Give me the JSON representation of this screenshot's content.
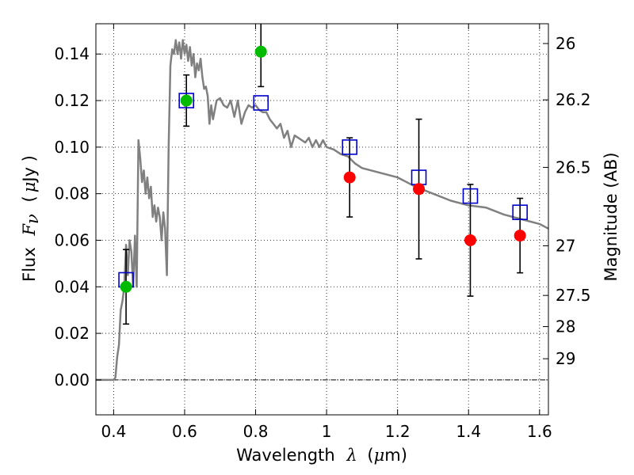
{
  "chart_data": {
    "type": "scatter",
    "xlabel": {
      "prefix": "Wavelength",
      "symbol": "λ",
      "unit_open": "(",
      "unit_mu": "μ",
      "unit_rest": "m)"
    },
    "ylabel": {
      "prefix": "Flux",
      "symbol": "F",
      "subscript": "ν",
      "unit_open": "(",
      "unit_mu": "μ",
      "unit_rest": "Jy )"
    },
    "y2label": "Magnitude (AB)",
    "xlim": [
      0.35,
      1.625
    ],
    "ylim": [
      -0.015,
      0.153
    ],
    "grid": true,
    "colors": {
      "model": "#808080",
      "template": "#0000cc",
      "detections": "#00bb00",
      "nondetections": "#ff0000",
      "errorbars": "#000000"
    },
    "x_ticks": [
      {
        "value": 0.4,
        "label": "0.4"
      },
      {
        "value": 0.6,
        "label": "0.6"
      },
      {
        "value": 0.8,
        "label": "0.8"
      },
      {
        "value": 1.0,
        "label": "1"
      },
      {
        "value": 1.2,
        "label": "1.2"
      },
      {
        "value": 1.4,
        "label": "1.4"
      },
      {
        "value": 1.6,
        "label": "1.6"
      }
    ],
    "y_ticks": [
      {
        "value": 0.0,
        "label": "0.00"
      },
      {
        "value": 0.02,
        "label": "0.02"
      },
      {
        "value": 0.04,
        "label": "0.04"
      },
      {
        "value": 0.06,
        "label": "0.06"
      },
      {
        "value": 0.08,
        "label": "0.08"
      },
      {
        "value": 0.1,
        "label": "0.10"
      },
      {
        "value": 0.12,
        "label": "0.12"
      },
      {
        "value": 0.14,
        "label": "0.14"
      }
    ],
    "y2_ticks": [
      {
        "flux": 0.1445,
        "label": "26"
      },
      {
        "flux": 0.1203,
        "label": "26.2"
      },
      {
        "flux": 0.0913,
        "label": "26.5"
      },
      {
        "flux": 0.0576,
        "label": "27"
      },
      {
        "flux": 0.0363,
        "label": "27.5"
      },
      {
        "flux": 0.0229,
        "label": "28"
      },
      {
        "flux": 0.0091,
        "label": "29"
      }
    ],
    "series": [
      {
        "name": "model_spectrum",
        "style": "line",
        "x": [
          0.35,
          0.4,
          0.405,
          0.41,
          0.415,
          0.42,
          0.425,
          0.43,
          0.435,
          0.44,
          0.445,
          0.45,
          0.455,
          0.46,
          0.465,
          0.47,
          0.475,
          0.48,
          0.485,
          0.49,
          0.495,
          0.5,
          0.505,
          0.51,
          0.515,
          0.52,
          0.525,
          0.53,
          0.535,
          0.54,
          0.545,
          0.55,
          0.555,
          0.56,
          0.565,
          0.57,
          0.575,
          0.58,
          0.585,
          0.59,
          0.595,
          0.6,
          0.605,
          0.61,
          0.615,
          0.62,
          0.625,
          0.63,
          0.635,
          0.64,
          0.645,
          0.65,
          0.655,
          0.66,
          0.665,
          0.67,
          0.675,
          0.68,
          0.69,
          0.7,
          0.71,
          0.72,
          0.73,
          0.74,
          0.75,
          0.76,
          0.77,
          0.78,
          0.79,
          0.8,
          0.81,
          0.82,
          0.83,
          0.84,
          0.85,
          0.86,
          0.87,
          0.88,
          0.89,
          0.9,
          0.91,
          0.92,
          0.93,
          0.94,
          0.95,
          0.96,
          0.97,
          0.98,
          0.99,
          1.0,
          1.02,
          1.04,
          1.06,
          1.08,
          1.1,
          1.15,
          1.2,
          1.25,
          1.3,
          1.35,
          1.4,
          1.45,
          1.5,
          1.55,
          1.6,
          1.625
        ],
        "y": [
          0.0,
          0.0,
          0.001,
          0.01,
          0.015,
          0.03,
          0.034,
          0.04,
          0.058,
          0.045,
          0.06,
          0.055,
          0.04,
          0.062,
          0.04,
          0.103,
          0.095,
          0.085,
          0.09,
          0.08,
          0.087,
          0.078,
          0.083,
          0.07,
          0.075,
          0.068,
          0.074,
          0.07,
          0.06,
          0.072,
          0.065,
          0.045,
          0.1,
          0.135,
          0.142,
          0.14,
          0.146,
          0.14,
          0.145,
          0.138,
          0.146,
          0.14,
          0.144,
          0.137,
          0.143,
          0.135,
          0.14,
          0.13,
          0.136,
          0.133,
          0.138,
          0.13,
          0.125,
          0.126,
          0.122,
          0.11,
          0.118,
          0.112,
          0.12,
          0.121,
          0.118,
          0.117,
          0.12,
          0.113,
          0.12,
          0.11,
          0.115,
          0.118,
          0.117,
          0.118,
          0.116,
          0.115,
          0.115,
          0.112,
          0.11,
          0.108,
          0.11,
          0.104,
          0.107,
          0.1,
          0.105,
          0.104,
          0.103,
          0.102,
          0.104,
          0.1,
          0.103,
          0.1,
          0.103,
          0.1,
          0.099,
          0.097,
          0.096,
          0.093,
          0.091,
          0.089,
          0.087,
          0.083,
          0.08,
          0.077,
          0.075,
          0.074,
          0.071,
          0.069,
          0.067,
          0.065
        ]
      },
      {
        "name": "template_photometry",
        "style": "open-square",
        "x": [
          0.435,
          0.605,
          0.815,
          1.065,
          1.26,
          1.405,
          1.545
        ],
        "y": [
          0.043,
          0.12,
          0.119,
          0.1,
          0.087,
          0.079,
          0.072
        ]
      },
      {
        "name": "detections",
        "style": "filled-circle",
        "x": [
          0.435,
          0.605,
          0.815
        ],
        "y": [
          0.04,
          0.12,
          0.141
        ],
        "yerr": [
          0.016,
          0.011,
          0.015
        ]
      },
      {
        "name": "nondetections",
        "style": "filled-circle",
        "x": [
          1.065,
          1.26,
          1.405,
          1.545
        ],
        "y": [
          0.087,
          0.082,
          0.06,
          0.062
        ],
        "yerr": [
          0.017,
          0.03,
          0.024,
          0.016
        ]
      }
    ]
  }
}
